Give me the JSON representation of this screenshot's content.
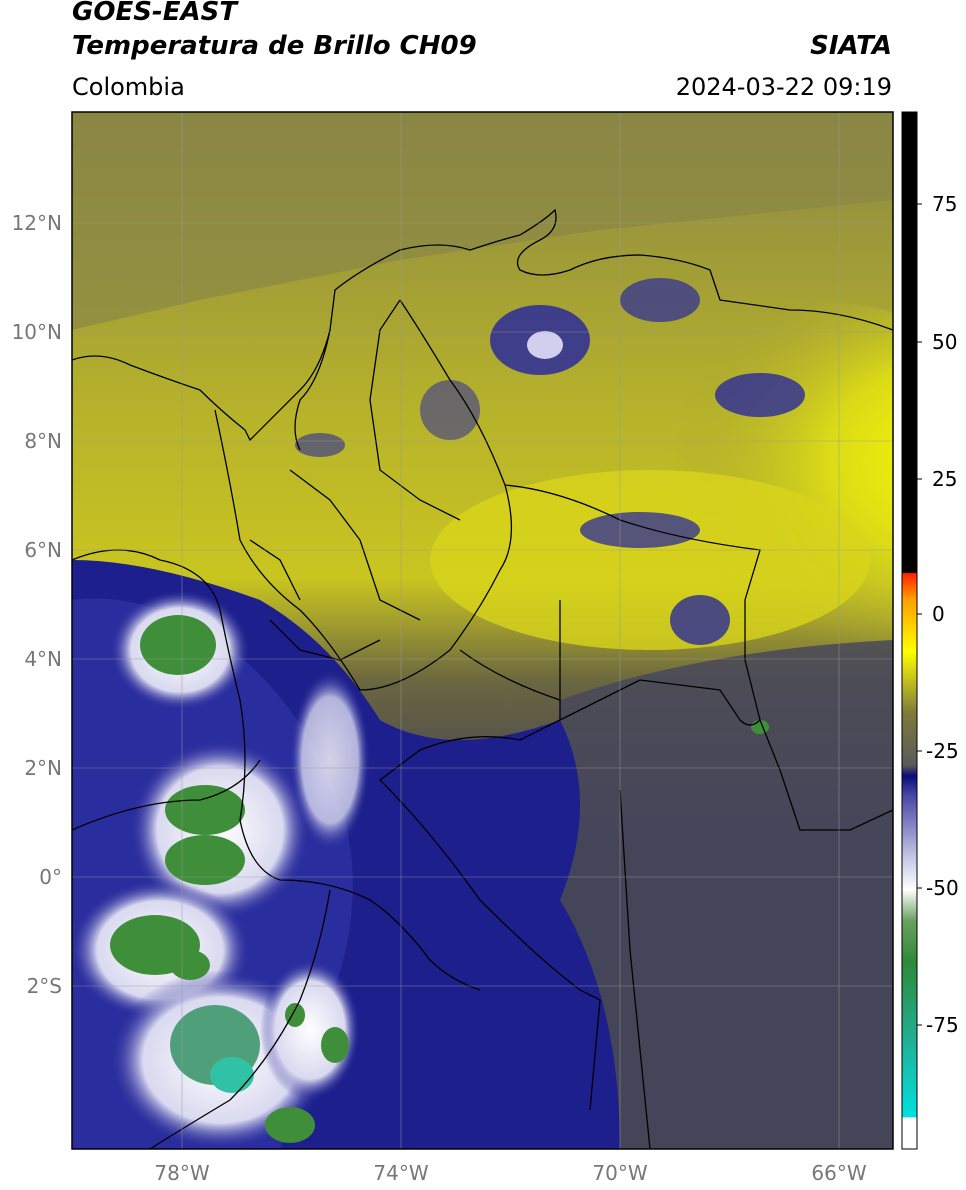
{
  "header": {
    "satellite": "GOES-EAST",
    "product": "Temperatura de Brillo CH09",
    "region": "Colombia",
    "brand": "SIATA",
    "datetime": "2024-03-22 09:19"
  },
  "axes": {
    "lat_ticks": [
      {
        "value": 12,
        "label": "12°N"
      },
      {
        "value": 10,
        "label": "10°N"
      },
      {
        "value": 8,
        "label": "8°N"
      },
      {
        "value": 6,
        "label": "6°N"
      },
      {
        "value": 4,
        "label": "4°N"
      },
      {
        "value": 2,
        "label": "2°N"
      },
      {
        "value": 0,
        "label": "0°"
      },
      {
        "value": -2,
        "label": "2°S"
      }
    ],
    "lon_ticks": [
      {
        "value": -78,
        "label": "78°W"
      },
      {
        "value": -74,
        "label": "74°W"
      },
      {
        "value": -70,
        "label": "70°W"
      },
      {
        "value": -66,
        "label": "66°W"
      }
    ],
    "lon_range": [
      -80,
      -65
    ],
    "lat_range": [
      -5,
      14
    ]
  },
  "colorbar": {
    "ticks": [
      {
        "value": 75,
        "label": "75"
      },
      {
        "value": 50,
        "label": "50"
      },
      {
        "value": 25,
        "label": "25"
      },
      {
        "value": 0,
        "label": "0"
      },
      {
        "value": -25,
        "label": "-25"
      },
      {
        "value": -50,
        "label": "-50"
      },
      {
        "value": -75,
        "label": "-75"
      }
    ],
    "range": [
      -95,
      90
    ]
  },
  "colors": {
    "cold_cloud_green": "#3f8f3a",
    "deep_blue": "#1a1f8a",
    "yellow": "#e6e000",
    "olive": "#6e6c3e",
    "grey": "#4e4e56"
  }
}
